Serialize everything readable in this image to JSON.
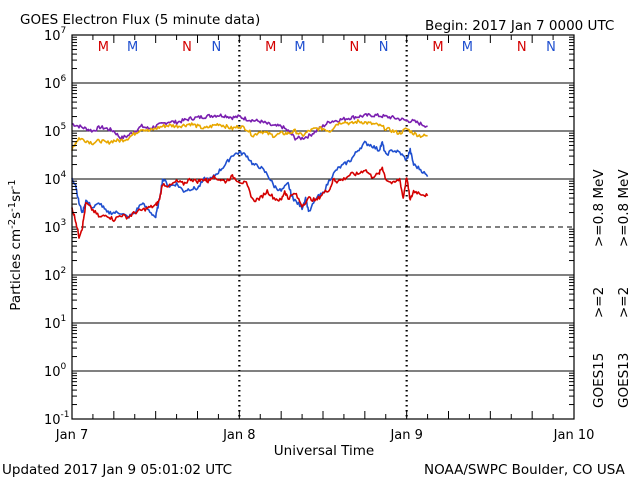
{
  "header": {
    "title": "GOES Electron Flux (5 minute data)",
    "begin": "Begin: 2017 Jan 7 0000 UTC",
    "updated": "Updated 2017 Jan  9 05:01:02 UTC",
    "credit": "NOAA/SWPC Boulder, CO USA"
  },
  "chart_data": {
    "type": "line",
    "title": "GOES Electron Flux (5 minute data)",
    "xlabel": "Universal Time",
    "ylabel": "Particles cm^-2 s^-1 sr^-1",
    "yscale": "log",
    "ylim_log10": [
      -1,
      7
    ],
    "xlim_hours": [
      0,
      72
    ],
    "x_ticks": [
      {
        "hour": 0,
        "label": "Jan 7"
      },
      {
        "hour": 24,
        "label": "Jan 8"
      },
      {
        "hour": 48,
        "label": "Jan 9"
      },
      {
        "hour": 72,
        "label": "Jan 10"
      }
    ],
    "y_ticks": [
      {
        "exp": 7,
        "label": "10",
        "sup": "7"
      },
      {
        "exp": 6,
        "label": "10",
        "sup": "6"
      },
      {
        "exp": 5,
        "label": "10",
        "sup": "5"
      },
      {
        "exp": 4,
        "label": "10",
        "sup": "4"
      },
      {
        "exp": 3,
        "label": "10",
        "sup": "3"
      },
      {
        "exp": 2,
        "label": "10",
        "sup": "2"
      },
      {
        "exp": 1,
        "label": "10",
        "sup": "1"
      },
      {
        "exp": 0,
        "label": "10",
        "sup": "0"
      },
      {
        "exp": -1,
        "label": "10",
        "sup": "-1"
      }
    ],
    "grid_exps_solid": [
      6,
      5,
      4,
      2,
      1,
      0
    ],
    "threshold_exp": 3,
    "local_time_markers": [
      {
        "hour": 4.5,
        "label": "M",
        "color": "#d40000"
      },
      {
        "hour": 8.7,
        "label": "M",
        "color": "#1f4fcf"
      },
      {
        "hour": 16.5,
        "label": "N",
        "color": "#d40000"
      },
      {
        "hour": 20.7,
        "label": "N",
        "color": "#1f4fcf"
      },
      {
        "hour": 28.5,
        "label": "M",
        "color": "#d40000"
      },
      {
        "hour": 32.7,
        "label": "M",
        "color": "#1f4fcf"
      },
      {
        "hour": 40.5,
        "label": "N",
        "color": "#d40000"
      },
      {
        "hour": 44.7,
        "label": "N",
        "color": "#1f4fcf"
      },
      {
        "hour": 52.5,
        "label": "M",
        "color": "#d40000"
      },
      {
        "hour": 56.7,
        "label": "M",
        "color": "#1f4fcf"
      },
      {
        "hour": 64.5,
        "label": "N",
        "color": "#d40000"
      },
      {
        "hour": 68.7,
        "label": "N",
        "color": "#1f4fcf"
      }
    ],
    "series": [
      {
        "name": "GOES15 >=0.8 MeV",
        "color": "#7a1fb0",
        "points": [
          [
            0,
            5.15
          ],
          [
            1,
            5.1
          ],
          [
            2,
            5.05
          ],
          [
            3,
            5.0
          ],
          [
            4,
            5.08
          ],
          [
            5,
            5.05
          ],
          [
            6,
            5.0
          ],
          [
            7,
            4.85
          ],
          [
            8,
            4.9
          ],
          [
            9,
            5.0
          ],
          [
            10,
            5.1
          ],
          [
            11,
            5.05
          ],
          [
            12,
            5.1
          ],
          [
            13,
            5.15
          ],
          [
            14,
            5.2
          ],
          [
            15,
            5.18
          ],
          [
            16,
            5.22
          ],
          [
            17,
            5.26
          ],
          [
            18,
            5.28
          ],
          [
            19,
            5.3
          ],
          [
            20,
            5.32
          ],
          [
            21,
            5.33
          ],
          [
            22,
            5.32
          ],
          [
            23,
            5.28
          ],
          [
            24,
            5.3
          ],
          [
            25,
            5.25
          ],
          [
            26,
            5.22
          ],
          [
            27,
            5.2
          ],
          [
            28,
            5.15
          ],
          [
            29,
            5.1
          ],
          [
            30,
            5.1
          ],
          [
            31,
            5.0
          ],
          [
            32,
            4.85
          ],
          [
            33,
            4.85
          ],
          [
            34,
            4.9
          ],
          [
            35,
            5.0
          ],
          [
            36,
            5.1
          ],
          [
            37,
            5.2
          ],
          [
            38,
            5.22
          ],
          [
            39,
            5.25
          ],
          [
            40,
            5.28
          ],
          [
            41,
            5.3
          ],
          [
            42,
            5.32
          ],
          [
            43,
            5.33
          ],
          [
            44,
            5.32
          ],
          [
            45,
            5.3
          ],
          [
            46,
            5.28
          ],
          [
            47,
            5.25
          ],
          [
            48,
            5.22
          ],
          [
            49,
            5.2
          ],
          [
            50,
            5.15
          ],
          [
            51,
            5.1
          ]
        ]
      },
      {
        "name": "GOES13 >=0.8 MeV",
        "color": "#e8a800",
        "points": [
          [
            0,
            4.6
          ],
          [
            0.5,
            4.75
          ],
          [
            1,
            4.85
          ],
          [
            2,
            4.8
          ],
          [
            3,
            4.75
          ],
          [
            4,
            4.8
          ],
          [
            5,
            4.75
          ],
          [
            6,
            4.8
          ],
          [
            7,
            4.8
          ],
          [
            8,
            4.85
          ],
          [
            9,
            4.95
          ],
          [
            10,
            5.05
          ],
          [
            11,
            5.0
          ],
          [
            12,
            5.05
          ],
          [
            13,
            5.1
          ],
          [
            14,
            5.12
          ],
          [
            15,
            5.1
          ],
          [
            16,
            5.12
          ],
          [
            17,
            5.15
          ],
          [
            18,
            5.1
          ],
          [
            19,
            5.05
          ],
          [
            20,
            5.1
          ],
          [
            21,
            5.15
          ],
          [
            22,
            5.1
          ],
          [
            23,
            5.05
          ],
          [
            24,
            5.1
          ],
          [
            25,
            5.05
          ],
          [
            26,
            4.9
          ],
          [
            27,
            5.0
          ],
          [
            28,
            4.95
          ],
          [
            29,
            4.9
          ],
          [
            30,
            4.95
          ],
          [
            31,
            4.95
          ],
          [
            32,
            5.0
          ],
          [
            33,
            4.9
          ],
          [
            34,
            5.0
          ],
          [
            35,
            5.05
          ],
          [
            36,
            5.05
          ],
          [
            37,
            5.0
          ],
          [
            38,
            5.15
          ],
          [
            39,
            5.2
          ],
          [
            40,
            5.15
          ],
          [
            41,
            5.2
          ],
          [
            42,
            5.18
          ],
          [
            43,
            5.15
          ],
          [
            44,
            5.12
          ],
          [
            45,
            5.05
          ],
          [
            46,
            5.0
          ],
          [
            47,
            4.95
          ],
          [
            48,
            5.05
          ],
          [
            49,
            4.95
          ],
          [
            50,
            4.9
          ],
          [
            51,
            4.9
          ]
        ]
      },
      {
        "name": "GOES15 >=2 MeV",
        "color": "#1f4fcf",
        "points": [
          [
            0,
            4.0
          ],
          [
            0.5,
            3.9
          ],
          [
            1,
            3.5
          ],
          [
            1.5,
            3.3
          ],
          [
            2,
            3.55
          ],
          [
            3,
            3.4
          ],
          [
            4,
            3.5
          ],
          [
            5,
            3.3
          ],
          [
            6,
            3.3
          ],
          [
            7,
            3.3
          ],
          [
            8,
            3.2
          ],
          [
            9,
            3.3
          ],
          [
            10,
            3.5
          ],
          [
            11,
            3.35
          ],
          [
            12,
            3.2
          ],
          [
            12.5,
            3.55
          ],
          [
            13,
            4.0
          ],
          [
            14,
            3.85
          ],
          [
            15,
            3.9
          ],
          [
            16,
            3.75
          ],
          [
            17,
            3.8
          ],
          [
            18,
            3.8
          ],
          [
            19,
            4.0
          ],
          [
            20,
            4.0
          ],
          [
            21,
            4.15
          ],
          [
            22,
            4.3
          ],
          [
            23,
            4.5
          ],
          [
            24,
            4.55
          ],
          [
            25,
            4.5
          ],
          [
            26,
            4.3
          ],
          [
            27,
            4.25
          ],
          [
            28,
            4.1
          ],
          [
            29,
            3.85
          ],
          [
            30,
            3.75
          ],
          [
            31,
            3.9
          ],
          [
            31.5,
            3.65
          ],
          [
            32,
            3.55
          ],
          [
            33,
            3.4
          ],
          [
            33.5,
            3.6
          ],
          [
            34,
            3.3
          ],
          [
            35,
            3.6
          ],
          [
            36,
            3.7
          ],
          [
            37,
            4.0
          ],
          [
            38,
            4.2
          ],
          [
            39,
            4.3
          ],
          [
            40,
            4.4
          ],
          [
            41,
            4.6
          ],
          [
            42,
            4.75
          ],
          [
            43,
            4.7
          ],
          [
            44,
            4.6
          ],
          [
            44.5,
            4.75
          ],
          [
            45,
            4.5
          ],
          [
            46,
            4.6
          ],
          [
            47,
            4.55
          ],
          [
            48,
            4.4
          ],
          [
            48.5,
            4.6
          ],
          [
            49,
            4.3
          ],
          [
            50,
            4.2
          ],
          [
            51,
            4.05
          ]
        ]
      },
      {
        "name": "GOES13 >=2 MeV",
        "color": "#d40000",
        "points": [
          [
            0,
            3.4
          ],
          [
            0.5,
            3.15
          ],
          [
            1,
            2.8
          ],
          [
            1.5,
            3.0
          ],
          [
            2,
            3.5
          ],
          [
            3,
            3.35
          ],
          [
            4,
            3.2
          ],
          [
            5,
            3.25
          ],
          [
            6,
            3.15
          ],
          [
            7,
            3.25
          ],
          [
            8,
            3.2
          ],
          [
            9,
            3.3
          ],
          [
            10,
            3.35
          ],
          [
            11,
            3.4
          ],
          [
            12,
            3.45
          ],
          [
            12.5,
            3.55
          ],
          [
            13,
            3.9
          ],
          [
            14,
            3.85
          ],
          [
            15,
            3.95
          ],
          [
            16,
            3.9
          ],
          [
            17,
            4.0
          ],
          [
            18,
            3.95
          ],
          [
            19,
            4.0
          ],
          [
            19.5,
            3.95
          ],
          [
            20,
            4.05
          ],
          [
            21,
            4.0
          ],
          [
            22,
            3.95
          ],
          [
            23,
            4.05
          ],
          [
            24,
            3.95
          ],
          [
            25,
            3.9
          ],
          [
            26,
            3.55
          ],
          [
            27,
            3.6
          ],
          [
            28,
            3.75
          ],
          [
            29,
            3.6
          ],
          [
            30,
            3.55
          ],
          [
            30.5,
            3.75
          ],
          [
            31,
            3.6
          ],
          [
            32,
            3.7
          ],
          [
            33,
            3.45
          ],
          [
            34,
            3.6
          ],
          [
            35,
            3.55
          ],
          [
            36,
            3.7
          ],
          [
            37,
            3.8
          ],
          [
            37.5,
            4.0
          ],
          [
            38,
            3.95
          ],
          [
            39,
            4.0
          ],
          [
            40,
            4.1
          ],
          [
            41,
            4.1
          ],
          [
            42,
            4.2
          ],
          [
            43,
            4.05
          ],
          [
            44,
            4.1
          ],
          [
            44.5,
            4.25
          ],
          [
            45,
            4.0
          ],
          [
            46,
            3.9
          ],
          [
            47,
            4.0
          ],
          [
            47.5,
            3.6
          ],
          [
            48,
            4.05
          ],
          [
            48.5,
            3.55
          ],
          [
            49,
            3.75
          ],
          [
            50,
            3.7
          ],
          [
            51,
            3.65
          ]
        ]
      }
    ],
    "right_legend": [
      {
        "group": "GOES15",
        "e2": ">=2",
        "e08": ">=0.8 MeV",
        "c2": "#1f4fcf",
        "c08": "#7a1fb0"
      },
      {
        "group": "GOES13",
        "e2": ">=2",
        "e08": ">=0.8 MeV",
        "c2": "#d40000",
        "c08": "#e8a800"
      }
    ]
  }
}
